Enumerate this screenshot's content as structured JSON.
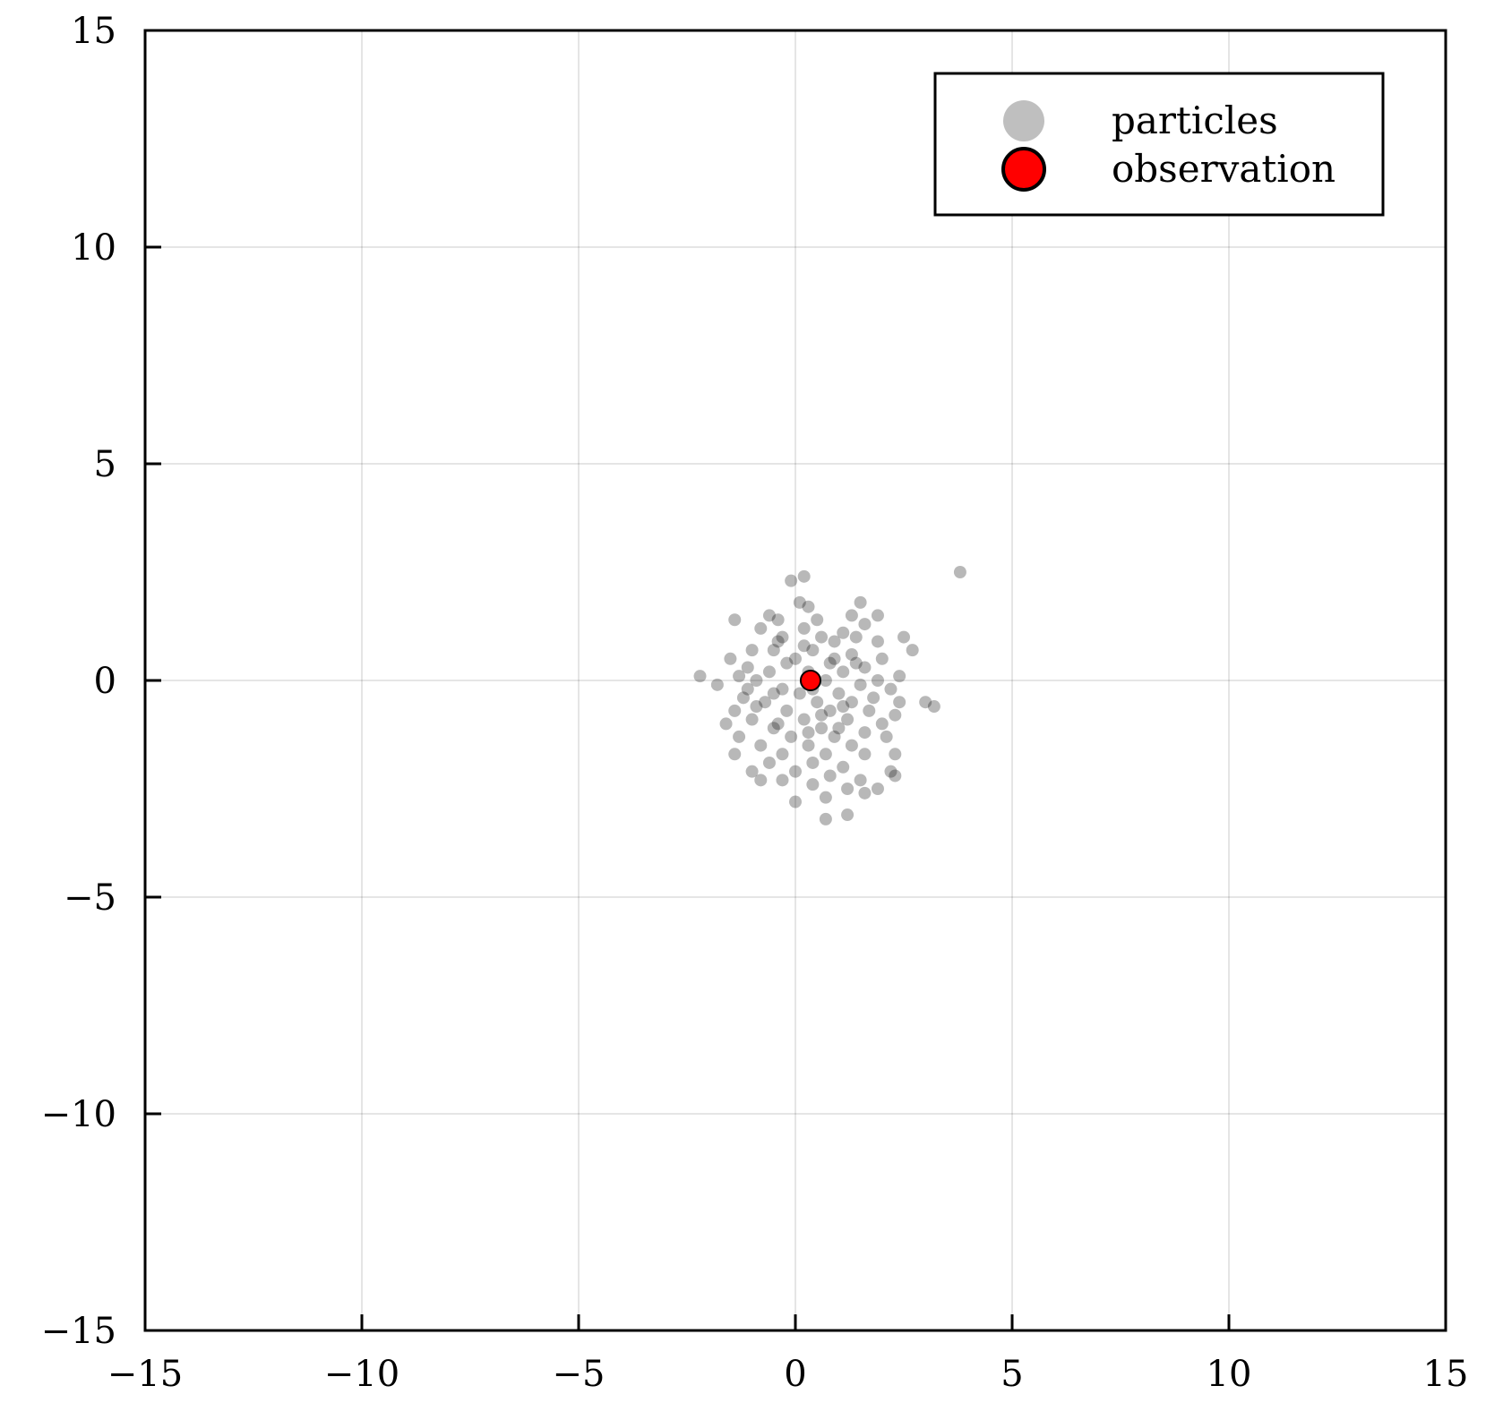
{
  "chart_data": {
    "type": "scatter",
    "title": "",
    "xlabel": "",
    "ylabel": "",
    "xlim": [
      -15,
      15
    ],
    "ylim": [
      -15,
      15
    ],
    "xticks": [
      -15,
      -10,
      -5,
      0,
      5,
      10,
      15
    ],
    "yticks": [
      -15,
      -10,
      -5,
      0,
      5,
      10,
      15
    ],
    "xtick_labels": [
      "−15",
      "−10",
      "−5",
      "0",
      "5",
      "10",
      "15"
    ],
    "ytick_labels": [
      "−15",
      "−10",
      "−5",
      "0",
      "5",
      "10",
      "15"
    ],
    "grid": true,
    "legend_position": "top-right",
    "series": [
      {
        "name": "particles",
        "color": "#000000",
        "legend_color": "#bfbfbf",
        "opacity": 0.28,
        "points": [
          [
            3.8,
            2.5
          ],
          [
            0.2,
            2.4
          ],
          [
            -0.1,
            2.3
          ],
          [
            0.1,
            1.8
          ],
          [
            1.5,
            1.8
          ],
          [
            0.3,
            1.7
          ],
          [
            -1.4,
            1.4
          ],
          [
            -0.6,
            1.5
          ],
          [
            1.3,
            1.5
          ],
          [
            1.9,
            1.5
          ],
          [
            -0.4,
            1.4
          ],
          [
            0.5,
            1.4
          ],
          [
            1.6,
            1.3
          ],
          [
            -0.8,
            1.2
          ],
          [
            0.2,
            1.2
          ],
          [
            1.1,
            1.1
          ],
          [
            2.5,
            1.0
          ],
          [
            1.4,
            1.0
          ],
          [
            -0.3,
            1.0
          ],
          [
            0.9,
            0.9
          ],
          [
            1.9,
            0.9
          ],
          [
            2.7,
            0.7
          ],
          [
            -1.0,
            0.7
          ],
          [
            -0.5,
            0.7
          ],
          [
            0.4,
            0.7
          ],
          [
            1.3,
            0.6
          ],
          [
            2.0,
            0.5
          ],
          [
            -1.5,
            0.5
          ],
          [
            0.0,
            0.5
          ],
          [
            -1.1,
            0.3
          ],
          [
            0.8,
            0.4
          ],
          [
            1.6,
            0.3
          ],
          [
            -2.2,
            0.1
          ],
          [
            -1.3,
            0.1
          ],
          [
            -0.6,
            0.2
          ],
          [
            0.3,
            0.2
          ],
          [
            1.1,
            0.2
          ],
          [
            2.4,
            0.1
          ],
          [
            -1.8,
            -0.1
          ],
          [
            -0.9,
            0.0
          ],
          [
            0.7,
            0.0
          ],
          [
            1.5,
            -0.1
          ],
          [
            2.2,
            -0.2
          ],
          [
            -0.3,
            -0.2
          ],
          [
            1.9,
            0.0
          ],
          [
            -1.2,
            -0.4
          ],
          [
            0.1,
            -0.3
          ],
          [
            1.0,
            -0.3
          ],
          [
            3.0,
            -0.5
          ],
          [
            3.2,
            -0.6
          ],
          [
            2.4,
            -0.5
          ],
          [
            -0.7,
            -0.5
          ],
          [
            0.5,
            -0.5
          ],
          [
            1.3,
            -0.5
          ],
          [
            -1.4,
            -0.7
          ],
          [
            -0.2,
            -0.7
          ],
          [
            0.8,
            -0.7
          ],
          [
            1.7,
            -0.7
          ],
          [
            2.3,
            -0.8
          ],
          [
            -1.0,
            -0.9
          ],
          [
            0.2,
            -0.9
          ],
          [
            1.2,
            -0.9
          ],
          [
            2.0,
            -1.0
          ],
          [
            -1.6,
            -1.0
          ],
          [
            -0.5,
            -1.1
          ],
          [
            0.6,
            -1.1
          ],
          [
            1.6,
            -1.2
          ],
          [
            -1.3,
            -1.3
          ],
          [
            -0.1,
            -1.3
          ],
          [
            0.9,
            -1.3
          ],
          [
            2.1,
            -1.3
          ],
          [
            -0.8,
            -1.5
          ],
          [
            0.3,
            -1.5
          ],
          [
            1.3,
            -1.5
          ],
          [
            -1.4,
            -1.7
          ],
          [
            -0.3,
            -1.7
          ],
          [
            0.7,
            -1.7
          ],
          [
            1.6,
            -1.7
          ],
          [
            2.3,
            -1.7
          ],
          [
            -0.6,
            -1.9
          ],
          [
            0.4,
            -1.9
          ],
          [
            1.1,
            -2.0
          ],
          [
            -1.0,
            -2.1
          ],
          [
            0.0,
            -2.1
          ],
          [
            0.8,
            -2.2
          ],
          [
            2.2,
            -2.1
          ],
          [
            -0.3,
            -2.3
          ],
          [
            1.5,
            -2.3
          ],
          [
            2.3,
            -2.2
          ],
          [
            -0.8,
            -2.3
          ],
          [
            0.4,
            -2.4
          ],
          [
            1.2,
            -2.5
          ],
          [
            1.9,
            -2.5
          ],
          [
            0.7,
            -2.7
          ],
          [
            1.6,
            -2.6
          ],
          [
            0.0,
            -2.8
          ],
          [
            0.7,
            -3.2
          ],
          [
            1.2,
            -3.1
          ],
          [
            -0.4,
            0.9
          ],
          [
            0.6,
            1.0
          ],
          [
            -0.2,
            0.4
          ],
          [
            0.9,
            0.5
          ],
          [
            0.4,
            -0.2
          ],
          [
            -0.5,
            -0.3
          ],
          [
            1.4,
            0.4
          ],
          [
            0.2,
            0.8
          ],
          [
            1.1,
            -0.6
          ],
          [
            -0.9,
            -0.6
          ],
          [
            0.6,
            -0.8
          ],
          [
            -0.4,
            -1.0
          ],
          [
            1.0,
            -1.1
          ],
          [
            0.3,
            -1.2
          ],
          [
            1.8,
            -0.4
          ],
          [
            -1.1,
            -0.2
          ]
        ]
      },
      {
        "name": "observation",
        "color": "#ff0000",
        "stroke": "#000000",
        "points": [
          [
            0.35,
            0.0
          ]
        ]
      }
    ]
  }
}
